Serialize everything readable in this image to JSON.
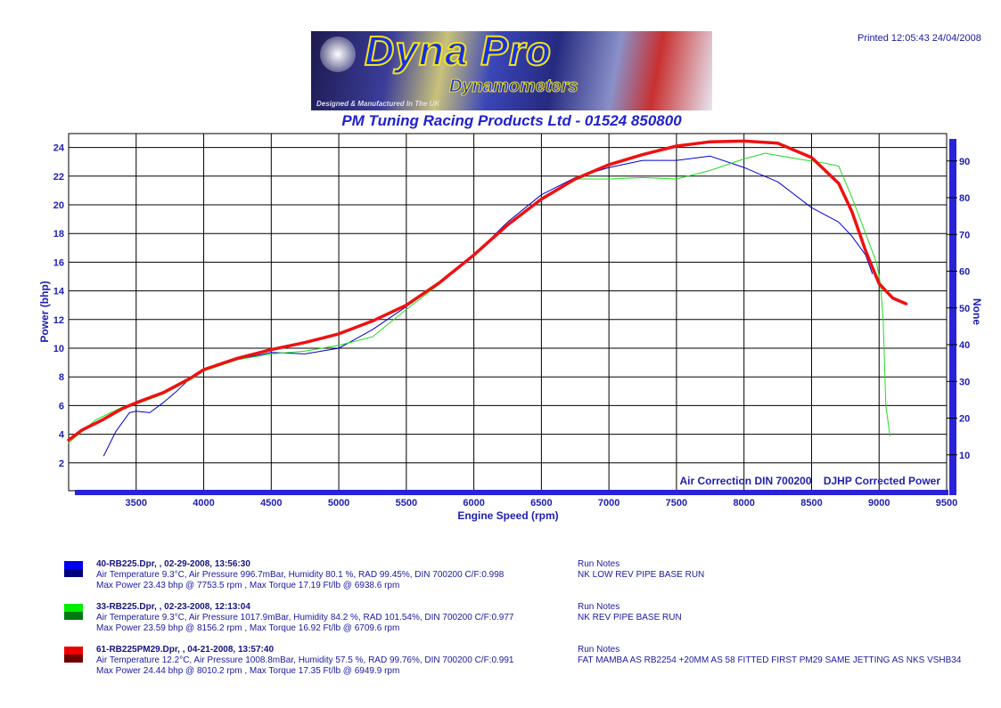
{
  "header": {
    "printed": "Printed 12:05:43  24/04/2008",
    "logo_text": "Dyna Pro",
    "logo_subtext": "Dynamometers",
    "logo_tagline": "Designed & Manufactured In The UK",
    "company": "PM Tuning Racing Products Ltd - 01524 850800"
  },
  "chart_data": {
    "type": "line",
    "xlabel": "Engine Speed (rpm)",
    "ylabel": "Power (bhp)",
    "y2label": "None",
    "xlim": [
      3000,
      9500
    ],
    "ylim": [
      0,
      25
    ],
    "y2lim": [
      0,
      97
    ],
    "xticks": [
      3500,
      4000,
      4500,
      5000,
      5500,
      6000,
      6500,
      7000,
      7500,
      8000,
      8500,
      9000,
      9500
    ],
    "yticks": [
      2,
      4,
      6,
      8,
      10,
      12,
      14,
      16,
      18,
      20,
      22,
      24
    ],
    "y2ticks": [
      10,
      20,
      30,
      40,
      50,
      60,
      70,
      80,
      90
    ],
    "grid": true,
    "annotation": "Air Correction DIN 700200    DJHP Corrected Power",
    "series": [
      {
        "name": "40-RB225.Dpr",
        "color": "#0000cc",
        "x": [
          3260,
          3350,
          3450,
          3500,
          3600,
          3700,
          3800,
          3900,
          4000,
          4250,
          4500,
          4750,
          5000,
          5250,
          5500,
          5750,
          6000,
          6250,
          6500,
          6750,
          7000,
          7250,
          7500,
          7750,
          8000,
          8250,
          8500,
          8700,
          8800,
          8900,
          8950
        ],
        "y": [
          2.5,
          4.2,
          5.5,
          5.6,
          5.5,
          6.2,
          7.0,
          7.9,
          8.5,
          9.2,
          9.7,
          9.6,
          10.0,
          11.3,
          12.9,
          14.6,
          16.5,
          18.8,
          20.7,
          21.9,
          22.6,
          23.1,
          23.1,
          23.4,
          22.6,
          21.6,
          19.8,
          18.8,
          17.8,
          16.5,
          15.2
        ]
      },
      {
        "name": "33-RB225.Dpr",
        "color": "#22dd22",
        "x": [
          3000,
          3200,
          3400,
          3500,
          3700,
          3900,
          4000,
          4250,
          4500,
          4750,
          5000,
          5250,
          5500,
          5750,
          6000,
          6250,
          6500,
          6750,
          7000,
          7250,
          7500,
          7750,
          8000,
          8156,
          8400,
          8600,
          8700,
          8800,
          8900,
          8980,
          9010,
          9030,
          9050,
          9080
        ],
        "y": [
          3.4,
          5.0,
          5.9,
          6.1,
          6.8,
          7.8,
          8.4,
          9.2,
          9.6,
          9.8,
          10.2,
          10.8,
          12.7,
          14.5,
          16.5,
          18.6,
          20.5,
          21.8,
          21.8,
          21.9,
          21.8,
          22.4,
          23.2,
          23.6,
          23.2,
          22.9,
          22.7,
          20.5,
          18.0,
          16.0,
          14.5,
          12.0,
          6.0,
          3.9
        ]
      },
      {
        "name": "61-RB225PM29.Dpr",
        "color": "#ee1111",
        "x": [
          3000,
          3100,
          3250,
          3400,
          3500,
          3700,
          3900,
          4000,
          4250,
          4500,
          4750,
          5000,
          5250,
          5500,
          5750,
          6000,
          6250,
          6500,
          6750,
          7000,
          7250,
          7500,
          7750,
          8000,
          8250,
          8500,
          8700,
          8800,
          8900,
          9000,
          9100,
          9200
        ],
        "y": [
          3.6,
          4.3,
          5.0,
          5.8,
          6.2,
          6.9,
          7.9,
          8.5,
          9.3,
          9.9,
          10.4,
          11.0,
          11.9,
          13.0,
          14.6,
          16.5,
          18.6,
          20.4,
          21.8,
          22.8,
          23.5,
          24.1,
          24.4,
          24.45,
          24.3,
          23.3,
          21.5,
          19.5,
          16.8,
          14.5,
          13.5,
          13.1
        ]
      }
    ]
  },
  "legend": [
    {
      "title": "40-RB225.Dpr,   ,   02-29-2008,   13:56:30",
      "conditions": "Air Temperature 9.3°C,   Air Pressure 996.7mBar,   Humidity 80.1 %,   RAD 99.45%,   DIN 700200  C/F:0.998",
      "max": "Max Power 23.43 bhp @ 7753.5 rpm ,   Max Torque 17.19 Ft/lb @ 6938.6 rpm",
      "notes_label": "Run Notes",
      "notes": "NK LOW REV PIPE BASE RUN",
      "color_top": "#0000ee",
      "color_bottom": "#000080"
    },
    {
      "title": "33-RB225.Dpr,   ,   02-23-2008,   12:13:04",
      "conditions": "Air Temperature 9.3°C,   Air Pressure 1017.9mBar,   Humidity 84.2 %,   RAD 101.54%,   DIN 700200  C/F:0.977",
      "max": "Max Power 23.59 bhp @ 8156.2 rpm ,   Max Torque 16.92 Ft/lb @ 6709.6 rpm",
      "notes_label": "Run Notes",
      "notes": "NK REV PIPE BASE RUN",
      "color_top": "#00ee00",
      "color_bottom": "#007a10"
    },
    {
      "title": "61-RB225PM29.Dpr,   ,   04-21-2008,   13:57:40",
      "conditions": "Air Temperature 12.2°C,   Air Pressure 1008.8mBar,   Humidity 57.5 %,   RAD 99.76%,   DIN 700200  C/F:0.991",
      "max": "Max Power 24.44 bhp @ 8010.2 rpm ,   Max Torque 17.35 Ft/lb @ 6949.9 rpm",
      "notes_label": "Run Notes",
      "notes": "FAT MAMBA AS RB2254 +20MM  AS 58 FITTED FIRST PM29 SAME JETTING AS NKS     VSHB34",
      "color_top": "#ee0000",
      "color_bottom": "#700000"
    }
  ]
}
